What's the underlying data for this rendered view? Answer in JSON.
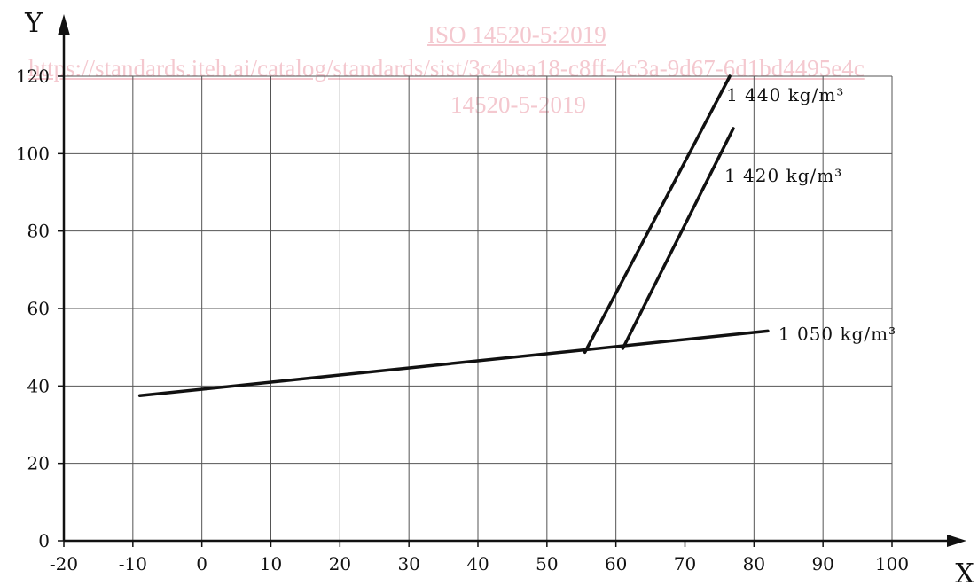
{
  "watermark": {
    "line1": "ISO 14520-5:2019",
    "line2": "https://standards.iteh.ai/catalog/standards/sist/3c4bea18-c8ff-4c3a-9d67-6d1bd4495e4c",
    "line3": "14520-5-2019"
  },
  "chart_data": {
    "type": "line",
    "title": "",
    "xlabel": "X",
    "ylabel": "Y",
    "xlim": [
      -20,
      100
    ],
    "ylim": [
      0,
      120
    ],
    "x_ticks": [
      -20,
      -10,
      0,
      10,
      20,
      30,
      40,
      50,
      60,
      70,
      80,
      90,
      100
    ],
    "y_ticks": [
      0,
      20,
      40,
      60,
      80,
      100,
      120
    ],
    "grid": true,
    "legend": "none",
    "series": [
      {
        "name": "1 050 kg/m³",
        "x": [
          -9,
          82
        ],
        "y": [
          37.5,
          54.2
        ],
        "color": "#111111"
      },
      {
        "name": "1 440 kg/m³",
        "x": [
          55.5,
          76.5
        ],
        "y": [
          48.7,
          120
        ],
        "color": "#111111"
      },
      {
        "name": "1 420 kg/m³",
        "x": [
          61,
          77
        ],
        "y": [
          49.7,
          106.5
        ],
        "color": "#111111"
      }
    ]
  }
}
